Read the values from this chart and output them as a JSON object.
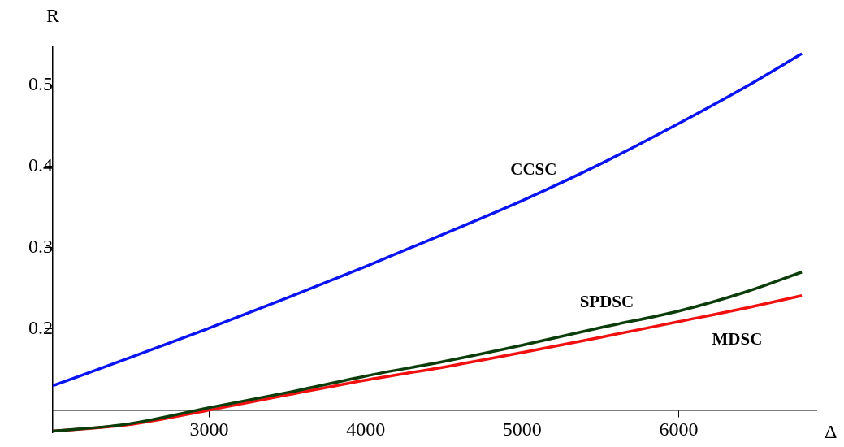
{
  "chart_data": {
    "type": "line",
    "xlabel": "Δ",
    "ylabel": "R",
    "xlim": [
      2000,
      6880
    ],
    "ylim": [
      0.072,
      0.548
    ],
    "xticks": [
      3000,
      4000,
      5000,
      6000
    ],
    "yticks": [
      {
        "value": 0.1,
        "label": null
      },
      0.2,
      0.3,
      0.4,
      0.5
    ],
    "grid": false,
    "legend": false,
    "marker": "none",
    "line_style": "solid",
    "x": [
      2000,
      2485,
      3000,
      3509,
      4000,
      4500,
      5000,
      5509,
      6000,
      6436,
      6787
    ],
    "series": [
      {
        "name": "CCSC",
        "color": "#0a14f0",
        "values": [
          0.13,
          0.164,
          0.201,
          0.239,
          0.277,
          0.317,
          0.358,
          0.404,
          0.453,
          0.499,
          0.539
        ]
      },
      {
        "name": "SPDSC",
        "color": "#0b3d0b",
        "values": [
          0.074,
          0.083,
          0.103,
          0.122,
          0.142,
          0.16,
          0.18,
          0.202,
          0.222,
          0.246,
          0.27
        ]
      },
      {
        "name": "MDSC",
        "color": "#f01010",
        "values": [
          0.074,
          0.082,
          0.1,
          0.119,
          0.137,
          0.153,
          0.171,
          0.19,
          0.209,
          0.226,
          0.241
        ]
      }
    ]
  }
}
